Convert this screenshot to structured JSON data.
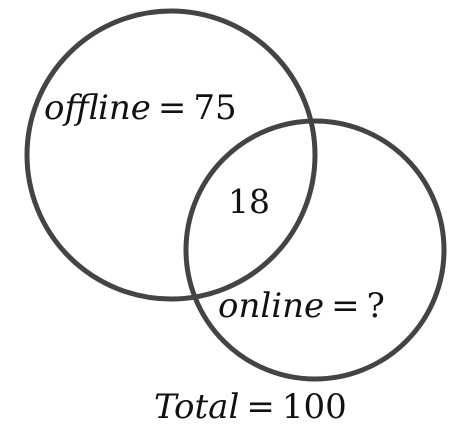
{
  "diagram": {
    "offline": {
      "name": "offline",
      "operator": "=",
      "value": "75"
    },
    "intersection": {
      "value": "18"
    },
    "online": {
      "name": "online",
      "operator": "=",
      "value": "?"
    },
    "total": {
      "name": "Total",
      "operator": "=",
      "value": "100"
    }
  },
  "colors": {
    "circle_stroke": "#444444",
    "text": "#111111",
    "background": "#ffffff"
  }
}
